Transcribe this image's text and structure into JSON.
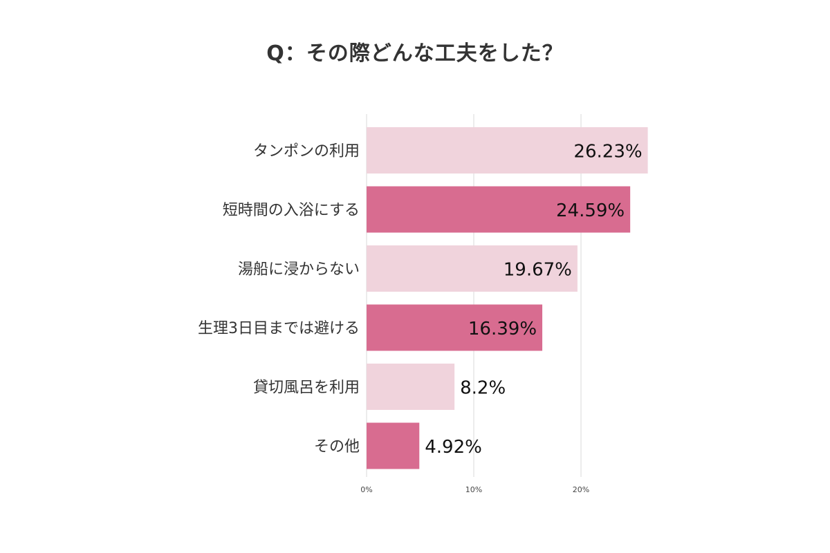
{
  "chart_data": {
    "type": "bar",
    "orientation": "horizontal",
    "title": "Q：その際どんな工夫をした？",
    "categories": [
      "タンポンの利用",
      "短時間の入浴にする",
      "湯船に浸からない",
      "生理3日目までは避ける",
      "貸切風呂を利用",
      "その他"
    ],
    "values": [
      26.23,
      24.59,
      19.67,
      16.39,
      8.2,
      4.92
    ],
    "value_labels": [
      "26.23%",
      "24.59%",
      "19.67%",
      "16.39%",
      "8.2%",
      "4.92%"
    ],
    "x_ticks": [
      "0%",
      "10%",
      "20%"
    ],
    "xlim": [
      0,
      26.23
    ],
    "grid": true,
    "bar_colors": [
      "#f0d3dc",
      "#d86c90",
      "#f0d3dc",
      "#d86c90",
      "#f0d3dc",
      "#d86c90"
    ],
    "gridline_color": "#d9d9d9"
  }
}
